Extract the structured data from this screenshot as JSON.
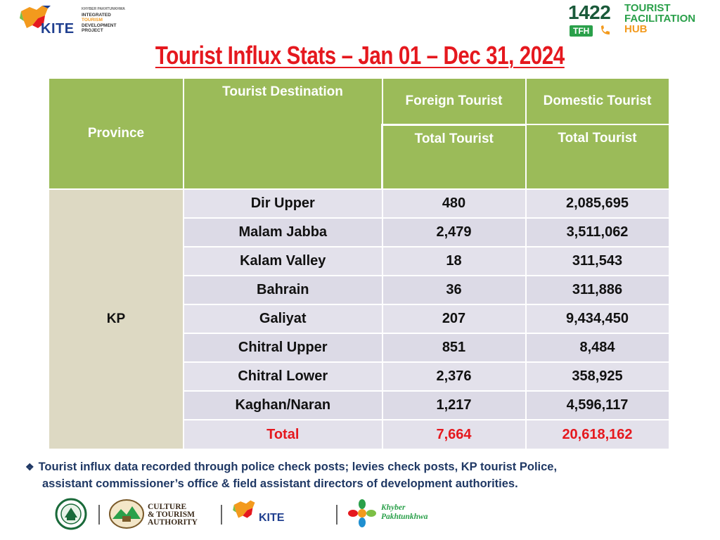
{
  "header": {
    "kite_logo": {
      "word": "KITE",
      "lines": [
        "KHYBER PAKHTUNKHWA",
        "INTEGRATED",
        "TOURISM",
        "DEVELOPMENT",
        "PROJECT"
      ]
    },
    "tfh_logo": {
      "number": "1422",
      "badge": "TFH",
      "lines": [
        "TOURIST",
        "FACILITATION",
        "HUB"
      ]
    }
  },
  "title": "Tourist Influx Stats  – Jan 01 – Dec 31, 2024",
  "table": {
    "headers": {
      "province": "Province",
      "destination": "Tourist Destination",
      "foreign": "Foreign Tourist",
      "domestic": "Domestic Tourist",
      "foreign_sub": "Total Tourist",
      "domestic_sub": "Total Tourist"
    },
    "province": "KP",
    "rows": [
      {
        "destination": "Dir Upper",
        "foreign": "480",
        "domestic": "2,085,695"
      },
      {
        "destination": "Malam Jabba",
        "foreign": "2,479",
        "domestic": "3,511,062"
      },
      {
        "destination": "Kalam Valley",
        "foreign": "18",
        "domestic": "311,543"
      },
      {
        "destination": "Bahrain",
        "foreign": "36",
        "domestic": "311,886"
      },
      {
        "destination": "Galiyat",
        "foreign": "207",
        "domestic": "9,434,450"
      },
      {
        "destination": "Chitral Upper",
        "foreign": "851",
        "domestic": "8,484"
      },
      {
        "destination": "Chitral Lower",
        "foreign": "2,376",
        "domestic": "358,925"
      },
      {
        "destination": "Kaghan/Naran",
        "foreign": "1,217",
        "domestic": "4,596,117"
      }
    ],
    "total": {
      "destination": "Total",
      "foreign": "7,664",
      "domestic": "20,618,162"
    }
  },
  "note": {
    "line1": "Tourist influx data recorded through police check posts; levies check posts, KP tourist Police,",
    "line2": "assistant commissioner’s office & field assistant directors of development authorities."
  },
  "footer": {
    "cta_lines": [
      "CULTURE",
      "& TOURISM",
      "AUTHORITY"
    ],
    "kite_word": "KITE",
    "kp_lines": [
      "Khyber",
      "Pakhtunkhwa"
    ]
  },
  "colors": {
    "header_green": "#9bbb59",
    "province_bg": "#ddd9c3",
    "row_bg": "#e3e1eb",
    "title_red": "#e5181e",
    "note_blue": "#1f3864"
  }
}
